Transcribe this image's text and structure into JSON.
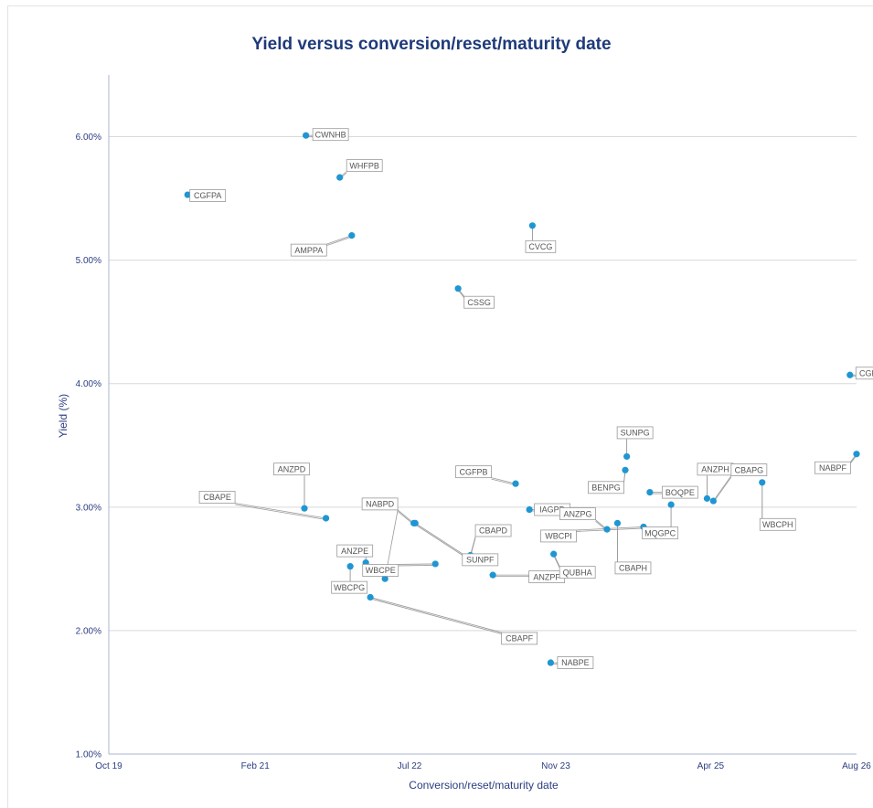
{
  "chart_data": {
    "type": "scatter",
    "title": "Yield versus conversion/reset/maturity date",
    "xlabel": "Conversion/reset/maturity date",
    "ylabel": "Yield (%)",
    "x_ticks": [
      "2019-10-01",
      "2021-02-01",
      "2022-07-01",
      "2023-11-01",
      "2025-04-01",
      "2026-08-01"
    ],
    "x_tick_labels": [
      "Oct 19",
      "Feb 21",
      "Jul 22",
      "Nov 23",
      "Apr 25",
      "Aug 26"
    ],
    "xlim": [
      "2019-10-01",
      "2026-08-01"
    ],
    "y_ticks": [
      1.0,
      2.0,
      3.0,
      4.0,
      5.0,
      6.0
    ],
    "y_tick_labels": [
      "1.00%",
      "2.00%",
      "3.00%",
      "4.00%",
      "5.00%",
      "6.00%"
    ],
    "ylim": [
      1.0,
      6.5
    ],
    "grid": true,
    "point_color": "#1f96d3",
    "points": [
      {
        "label": "CGFPA",
        "x": "2020-06-20",
        "y": 5.53
      },
      {
        "label": "CWNHB",
        "x": "2021-07-20",
        "y": 6.01
      },
      {
        "label": "WHFPB",
        "x": "2021-11-10",
        "y": 5.67
      },
      {
        "label": "AMPPA",
        "x": "2021-12-20",
        "y": 5.2
      },
      {
        "label": "CVCG",
        "x": "2023-08-15",
        "y": 5.28
      },
      {
        "label": "CSSG",
        "x": "2022-12-10",
        "y": 4.77
      },
      {
        "label": "CGFPC",
        "x": "2026-07-10",
        "y": 4.07
      },
      {
        "label": "NABPF",
        "x": "2026-08-01",
        "y": 3.43
      },
      {
        "label": "CBAPE",
        "x": "2021-09-25",
        "y": 2.91
      },
      {
        "label": "ANZPD",
        "x": "2021-07-15",
        "y": 2.99
      },
      {
        "label": "CGFPB",
        "x": "2023-06-20",
        "y": 3.19
      },
      {
        "label": "IAGPD",
        "x": "2023-08-05",
        "y": 2.98
      },
      {
        "label": "SUNPG",
        "x": "2024-06-25",
        "y": 3.41
      },
      {
        "label": "ANZPG",
        "x": "2024-04-20",
        "y": 2.82
      },
      {
        "label": "BENPG",
        "x": "2024-06-20",
        "y": 3.3
      },
      {
        "label": "BOQPE",
        "x": "2024-09-10",
        "y": 3.12
      },
      {
        "label": "ANZPH",
        "x": "2025-03-20",
        "y": 3.07
      },
      {
        "label": "CBAPG",
        "x": "2025-04-10",
        "y": 3.05
      },
      {
        "label": "WBCPH",
        "x": "2025-09-20",
        "y": 3.2
      },
      {
        "label": "NABPD",
        "x": "2022-07-15",
        "y": 2.87
      },
      {
        "label": "CBAPD",
        "x": "2023-01-20",
        "y": 2.61
      },
      {
        "label": "SUNPF",
        "x": "2022-07-20",
        "y": 2.87
      },
      {
        "label": "WBCPI",
        "x": "2024-08-20",
        "y": 2.84
      },
      {
        "label": "CBAPH",
        "x": "2024-05-25",
        "y": 2.87
      },
      {
        "label": "MQGPC",
        "x": "2024-11-20",
        "y": 3.02
      },
      {
        "label": "ANZPE",
        "x": "2022-02-05",
        "y": 2.55
      },
      {
        "label": "WBCPE",
        "x": "2022-09-25",
        "y": 2.54
      },
      {
        "label": "WBCPG",
        "x": "2021-12-15",
        "y": 2.52
      },
      {
        "label": "ANZPF",
        "x": "2023-04-05",
        "y": 2.45
      },
      {
        "label": "QUBHA",
        "x": "2023-10-25",
        "y": 2.62
      },
      {
        "label": "NABPD2",
        "x": "2022-04-10",
        "y": 2.42
      },
      {
        "label": "CBAPF",
        "x": "2022-02-20",
        "y": 2.27
      },
      {
        "label": "NABPE",
        "x": "2023-10-15",
        "y": 1.74
      }
    ]
  }
}
